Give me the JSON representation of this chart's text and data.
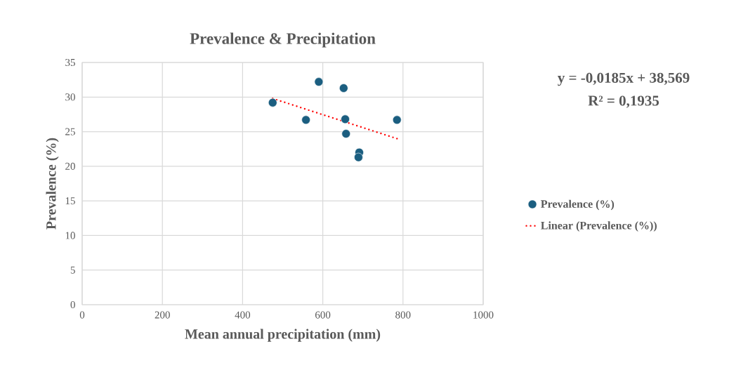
{
  "chart_data": {
    "type": "scatter",
    "title": "Prevalence & Precipitation",
    "xlabel": "Mean annual precipitation (mm)",
    "ylabel": "Prevalence (%)",
    "xlim": [
      0,
      1000
    ],
    "xticks": [
      0,
      200,
      400,
      600,
      800,
      1000
    ],
    "ylim": [
      0,
      35
    ],
    "yticks": [
      0,
      5,
      10,
      15,
      20,
      25,
      30,
      35
    ],
    "grid": true,
    "legend": "right",
    "annotations": [
      "y = -0,0185x + 38,569",
      "R² = 0,1935"
    ],
    "series": [
      {
        "name": "Prevalence (%)",
        "type": "scatter",
        "marker": "circle",
        "color": "#1b5e80",
        "x": [
          475,
          590,
          652,
          558,
          656,
          785,
          658,
          691,
          689
        ],
        "values": [
          29.2,
          32.2,
          31.3,
          26.7,
          26.8,
          26.7,
          24.7,
          22.0,
          21.3
        ]
      },
      {
        "name": "Linear (Prevalence (%))",
        "type": "line",
        "color": "#ff0000",
        "line_style": "dotted",
        "x": [
          475,
          785
        ],
        "values": [
          29.8,
          24.0
        ]
      }
    ]
  }
}
